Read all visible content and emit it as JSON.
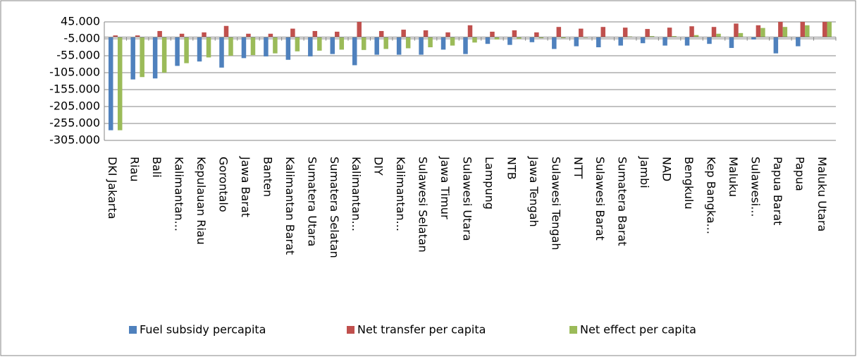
{
  "chart_data": {
    "type": "bar",
    "categories": [
      "DKI Jakarta",
      "Riau",
      "Bali",
      "Kalimantan...",
      "Kepulauan Riau",
      "Gorontalo",
      "Jawa Barat",
      "Banten",
      "Kalimantan Barat",
      "Sumatera Utara",
      "Sumatera Selatan",
      "Kalimantan...",
      "DIY",
      "Kalimantan...",
      "Sulawesi Selatan",
      "Jawa Timur",
      "Sulawesi Utara",
      "Lampung",
      "NTB",
      "Jawa Tengah",
      "Sulawesi Tengah",
      "NTT",
      "Sulawesi Barat",
      "Sumatera Barat",
      "Jambi",
      "NAD",
      "Bengkulu",
      "Kep Bangka...",
      "Maluku",
      "Sulawesi...",
      "Papua Barat",
      "Papua",
      "Maluku Utara"
    ],
    "series": [
      {
        "name": "Fuel subsidy percapita",
        "color": "#4f81bd",
        "values": [
          -275000,
          -125000,
          -122000,
          -85000,
          -72000,
          -90000,
          -62000,
          -57000,
          -67000,
          -57000,
          -50000,
          -83000,
          -52000,
          -52000,
          -52000,
          -37000,
          -50000,
          -20000,
          -23000,
          -15000,
          -35000,
          -27000,
          -30000,
          -25000,
          -18000,
          -25000,
          -25000,
          -20000,
          -32000,
          -7000,
          -48000,
          -27000,
          -1000
        ]
      },
      {
        "name": "Net transfer per capita",
        "color": "#c0504d",
        "values": [
          5000,
          5000,
          18000,
          10000,
          14000,
          33000,
          10000,
          10000,
          25000,
          18000,
          16000,
          45000,
          18000,
          22000,
          20000,
          14000,
          35000,
          16000,
          20000,
          14000,
          30000,
          25000,
          30000,
          28000,
          24000,
          28000,
          32000,
          30000,
          40000,
          35000,
          45000,
          45000,
          45000
        ]
      },
      {
        "name": "Net effect per capita",
        "color": "#9bbb59",
        "values": [
          -275000,
          -118000,
          -105000,
          -77000,
          -60000,
          -55000,
          -53000,
          -48000,
          -42000,
          -40000,
          -37000,
          -38000,
          -35000,
          -33000,
          -30000,
          -25000,
          -16000,
          -7000,
          -5000,
          -3000,
          -3000,
          -2000,
          1000,
          2000,
          3000,
          3000,
          6000,
          10000,
          12000,
          27000,
          30000,
          35000,
          45000
        ]
      }
    ],
    "ylim": [
      -305000,
      45000
    ],
    "yticks": [
      {
        "value": 45000,
        "label": "45.000"
      },
      {
        "value": -5000,
        "label": "-5.000"
      },
      {
        "value": -55000,
        "label": "-55.000"
      },
      {
        "value": -105000,
        "label": "-105.000"
      },
      {
        "value": -155000,
        "label": "-155.000"
      },
      {
        "value": -205000,
        "label": "-205.000"
      },
      {
        "value": -255000,
        "label": "-255.000"
      },
      {
        "value": -305000,
        "label": "-305.000"
      }
    ],
    "grid": true,
    "legend": "bottom"
  }
}
